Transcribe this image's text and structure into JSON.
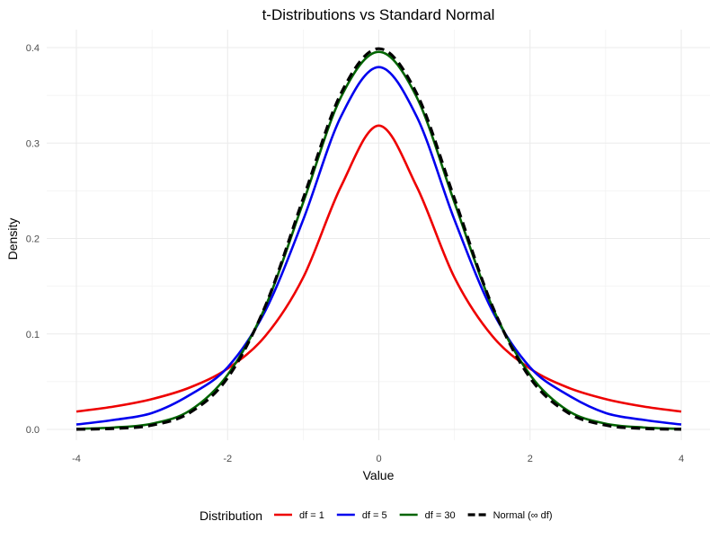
{
  "chart_data": {
    "type": "line",
    "title": "t-Distributions vs Standard Normal",
    "xlabel": "Value",
    "ylabel": "Density",
    "xlim": [
      -4,
      4
    ],
    "ylim": [
      0,
      0.4
    ],
    "x_ticks": [
      -4,
      -2,
      0,
      2,
      4
    ],
    "y_ticks": [
      0.0,
      0.1,
      0.2,
      0.3,
      0.4
    ],
    "x_tick_labels": [
      "-4",
      "-2",
      "0",
      "2",
      "4"
    ],
    "y_tick_labels": [
      "0.0",
      "0.1",
      "0.2",
      "0.3",
      "0.4"
    ],
    "grid": true,
    "legend": {
      "title": "Distribution",
      "position": "bottom"
    },
    "x": [
      -4,
      -3.5,
      -3,
      -2.5,
      -2,
      -1.5,
      -1,
      -0.5,
      0,
      0.5,
      1,
      1.5,
      2,
      2.5,
      3,
      3.5,
      4
    ],
    "series": [
      {
        "name": "df = 1",
        "color": "#ee0000",
        "dash": "solid",
        "values": [
          0.0187,
          0.024,
          0.0318,
          0.0439,
          0.0637,
          0.0979,
          0.1592,
          0.2546,
          0.3183,
          0.2546,
          0.1592,
          0.0979,
          0.0637,
          0.0439,
          0.0318,
          0.024,
          0.0187
        ]
      },
      {
        "name": "df = 5",
        "color": "#0000ee",
        "dash": "solid",
        "values": [
          0.0051,
          0.01,
          0.0172,
          0.0361,
          0.0651,
          0.1245,
          0.2197,
          0.3279,
          0.3796,
          0.3279,
          0.2197,
          0.1245,
          0.0651,
          0.0361,
          0.0172,
          0.01,
          0.0051
        ]
      },
      {
        "name": "df = 30",
        "color": "#006400",
        "dash": "solid",
        "values": [
          0.0006,
          0.002,
          0.006,
          0.0197,
          0.0572,
          0.1286,
          0.2378,
          0.3483,
          0.3956,
          0.3483,
          0.2378,
          0.1286,
          0.0572,
          0.0197,
          0.006,
          0.002,
          0.0006
        ]
      },
      {
        "name": "Normal (∞ df)",
        "color": "#000000",
        "dash": "dashed",
        "values": [
          0.0001,
          0.0009,
          0.0044,
          0.0175,
          0.054,
          0.1295,
          0.242,
          0.3521,
          0.3989,
          0.3521,
          0.242,
          0.1295,
          0.054,
          0.0175,
          0.0044,
          0.0009,
          0.0001
        ]
      }
    ]
  }
}
